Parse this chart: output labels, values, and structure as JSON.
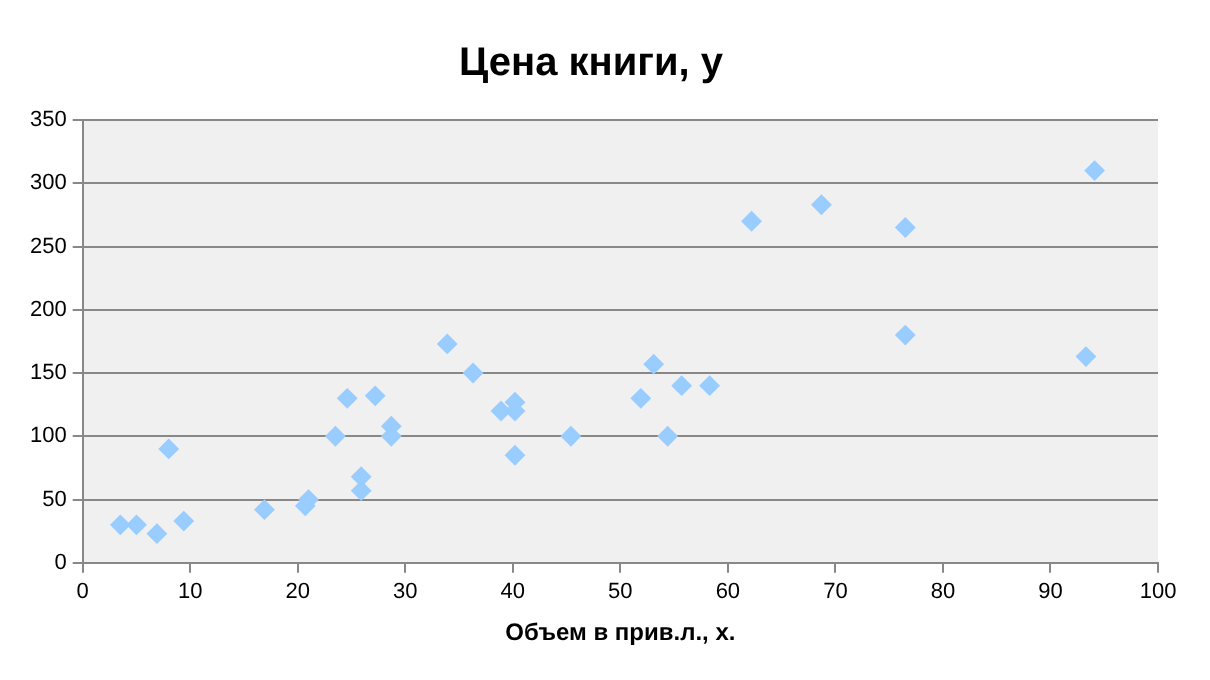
{
  "chart_data": {
    "type": "scatter",
    "title": "Цена книги, у",
    "xlabel": "Объем в прив.л., х.",
    "xlim": [
      0,
      100
    ],
    "xticks": [
      0,
      10,
      20,
      30,
      40,
      50,
      60,
      70,
      80,
      90,
      100
    ],
    "ylim": [
      0,
      350
    ],
    "yticks": [
      0,
      50,
      100,
      150,
      200,
      250,
      300,
      350
    ],
    "grid": "y",
    "legend": false,
    "marker": "diamond",
    "series": [
      {
        "color": "#99ccff",
        "x": [
          3.5,
          5,
          6.9,
          8,
          9.4,
          16.9,
          20.7,
          21,
          23.5,
          24.6,
          25.9,
          25.9,
          27.2,
          28.7,
          28.7,
          33.9,
          36.3,
          38.9,
          40.2,
          40.2,
          40.2,
          45.4,
          51.9,
          53.1,
          54.4,
          55.7,
          58.3,
          62.2,
          68.7,
          76.5,
          76.5,
          93.3,
          94.1
        ],
        "values": [
          30,
          30,
          23,
          90,
          33,
          42,
          45,
          50,
          100,
          130,
          68,
          57,
          132,
          108,
          100,
          173,
          150,
          120,
          127,
          120,
          85,
          100,
          130,
          157,
          100,
          140,
          140,
          270,
          283,
          265,
          180,
          163,
          310
        ]
      }
    ]
  }
}
